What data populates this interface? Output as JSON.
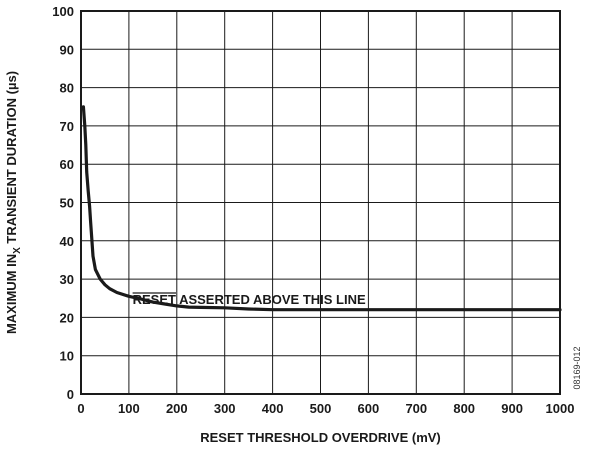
{
  "chart_data": {
    "type": "line",
    "xlabel": "RESET THRESHOLD OVERDRIVE (mV)",
    "ylabel_main": "MAXIMUM IN",
    "ylabel_sub": "X",
    "ylabel_rest": " TRANSIENT DURATION (µs)",
    "xlim": [
      0,
      1000
    ],
    "ylim": [
      0,
      100
    ],
    "xticks": [
      0,
      100,
      200,
      300,
      400,
      500,
      600,
      700,
      800,
      900,
      1000
    ],
    "yticks": [
      0,
      10,
      20,
      30,
      40,
      50,
      60,
      70,
      80,
      90,
      100
    ],
    "grid": true,
    "series": [
      {
        "x": [
          5,
          8,
          10,
          12,
          15,
          18,
          20,
          25,
          30,
          40,
          50,
          60,
          75,
          100,
          125,
          150,
          175,
          200,
          225,
          250,
          300,
          350,
          400,
          500,
          600,
          700,
          800,
          900,
          1000
        ],
        "y": [
          75,
          70,
          65,
          58,
          53,
          49,
          45,
          36,
          32.5,
          30,
          28.5,
          27.5,
          26.5,
          25.5,
          24.8,
          24,
          23.5,
          23,
          22.7,
          22.6,
          22.5,
          22.2,
          22,
          22,
          22,
          22,
          22,
          22,
          22
        ]
      }
    ],
    "annotation": {
      "overbar_text": "RESET",
      "text": " ASSERTED ABOVE THIS LINE",
      "x": 400,
      "y": 23.5
    },
    "figure_number": "08169-012"
  }
}
